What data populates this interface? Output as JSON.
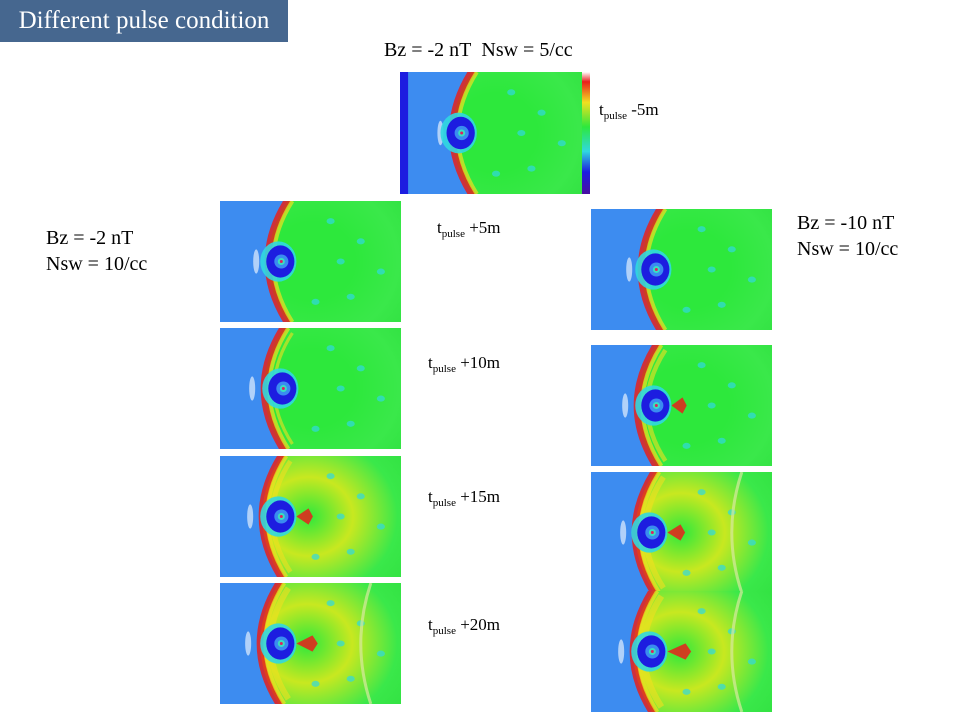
{
  "title": "Different pulse condition",
  "top_condition": {
    "bz": "Bz = -2 nT",
    "nsw": "Nsw = 5/cc"
  },
  "left_condition": {
    "bz": "Bz = -2 nT",
    "nsw": "Nsw = 10/cc"
  },
  "right_condition": {
    "bz": "Bz = -10 nT",
    "nsw": "Nsw = 10/cc"
  },
  "time_labels": [
    {
      "base": "t",
      "sub": "pulse",
      "offset": " -5m"
    },
    {
      "base": "t",
      "sub": "pulse",
      "offset": " +5m"
    },
    {
      "base": "t",
      "sub": "pulse",
      "offset": " +10m"
    },
    {
      "base": "t",
      "sub": "pulse",
      "offset": " +15m"
    },
    {
      "base": "t",
      "sub": "pulse",
      "offset": " +20m"
    }
  ],
  "colors": {
    "banner": "#46678f",
    "solar_wind": "#3d8cf0",
    "magnetosheath": "#2de83c",
    "shock_red": "#e8201c",
    "cavity_blue": "#1d1de0",
    "earth": "#38e0c0"
  }
}
